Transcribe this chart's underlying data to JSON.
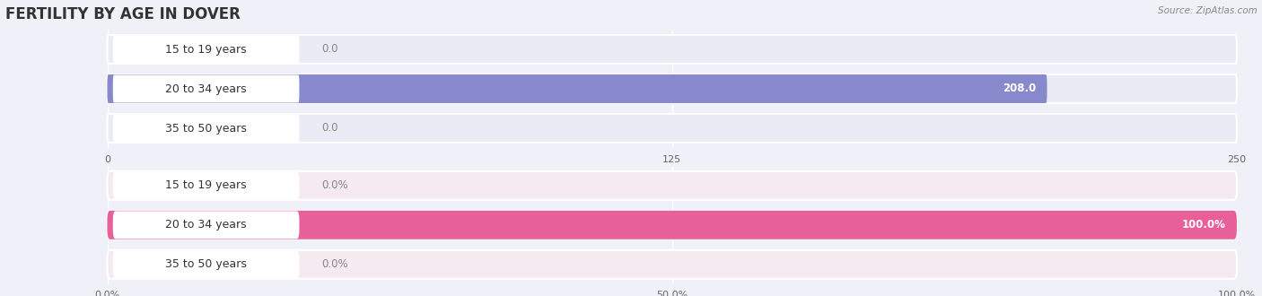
{
  "title": "FERTILITY BY AGE IN DOVER",
  "source": "Source: ZipAtlas.com",
  "top_chart": {
    "categories": [
      "15 to 19 years",
      "20 to 34 years",
      "35 to 50 years"
    ],
    "values": [
      0.0,
      208.0,
      0.0
    ],
    "xlim": [
      0,
      250
    ],
    "xticks": [
      0.0,
      125.0,
      250.0
    ],
    "bar_color": "#8888cc",
    "bar_bg_color": "#ddddf0",
    "row_bg_color": "#ebebf5"
  },
  "bottom_chart": {
    "categories": [
      "15 to 19 years",
      "20 to 34 years",
      "35 to 50 years"
    ],
    "values": [
      0.0,
      100.0,
      0.0
    ],
    "xlim": [
      0,
      100
    ],
    "xticks": [
      0.0,
      50.0,
      100.0
    ],
    "xtick_labels": [
      "0.0%",
      "50.0%",
      "100.0%"
    ],
    "bar_color": "#e8609a",
    "bar_bg_color": "#f0c8d8",
    "row_bg_color": "#f5eaf0"
  },
  "fig_bg_color": "#f0f0f8",
  "bar_height": 0.72,
  "label_fontsize": 9,
  "tick_fontsize": 8,
  "title_fontsize": 12,
  "category_fontsize": 9,
  "value_label_fontsize": 8.5
}
